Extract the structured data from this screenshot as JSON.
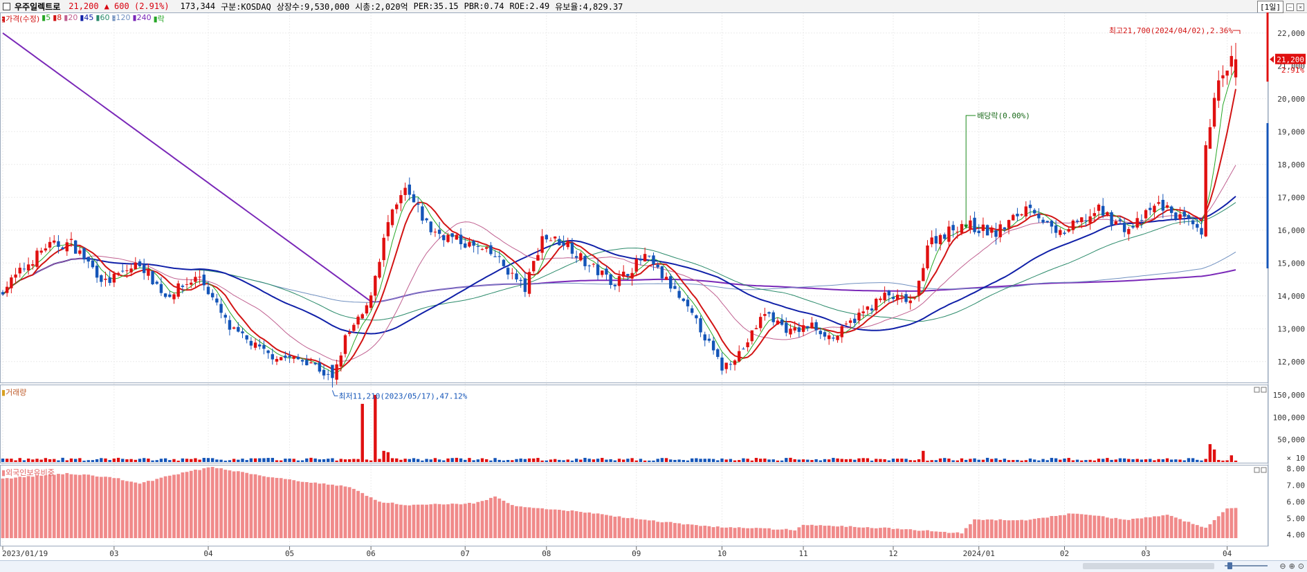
{
  "header": {
    "name": "우주일렉트로",
    "price": "21,200",
    "change": "▲ 600",
    "change_pct": "(2.91%)",
    "volume": "173,344",
    "market": "구분:KOSDAQ",
    "shares": "상장수:9,530,000",
    "mktcap": "시총:2,020억",
    "per": "PER:35.15",
    "pbr": "PBR:0.74",
    "roe": "ROE:2.49",
    "float": "유보율:4,829.37",
    "period": "[1일]"
  },
  "legend": {
    "price": "가격(수정)",
    "ma5": "5",
    "ma8": "8",
    "ma20": "20",
    "ma45": "45",
    "ma60": "60",
    "ma120": "120",
    "ma240": "240",
    "ex": "락"
  },
  "annotations": {
    "high": "최고21,700(2024/04/02),2.36%",
    "low": "최저11,210(2023/05/17),47.12%",
    "dividend": "배당락(0.00%)"
  },
  "price_tag": {
    "price": "21,200",
    "pct": "2.91%"
  },
  "panels": {
    "volume": "거래량",
    "foreign": "외국인보유비중",
    "volume_unit": "× 10"
  },
  "colors": {
    "up": "#e01010",
    "down": "#1455b8",
    "ma5": "#26a626",
    "ma8": "#d21414",
    "ma20": "#c06090",
    "ma45": "#1020a8",
    "ma60": "#2a8a6a",
    "ma120": "#7090c0",
    "ma240": "#7a28b8",
    "foreign": "#f08a8a"
  },
  "chart_data": {
    "type": "candlestick",
    "price_axis": {
      "ylim": [
        11300,
        22500
      ],
      "ticks": [
        12000,
        13000,
        14000,
        15000,
        16000,
        17000,
        18000,
        19000,
        20000,
        21000,
        22000
      ],
      "tick_labels": [
        "12,000",
        "13,000",
        "14,000",
        "15,000",
        "16,000",
        "17,000",
        "18,000",
        "19,000",
        "20,000",
        "21,000",
        "22,000"
      ]
    },
    "volume_axis": {
      "ticks": [
        50000,
        100000,
        150000
      ],
      "tick_labels": [
        "50,000",
        "100,000",
        "150,000"
      ],
      "note": "× 10"
    },
    "foreign_axis": {
      "ticks": [
        4,
        5,
        6,
        7,
        8
      ],
      "tick_labels": [
        "4.00",
        "5.00",
        "6.00",
        "7.00",
        "8.00"
      ]
    },
    "x_labels": [
      {
        "label": "2023/01/19",
        "i": 0
      },
      {
        "label": "03",
        "i": 26
      },
      {
        "label": "04",
        "i": 48
      },
      {
        "label": "05",
        "i": 67
      },
      {
        "label": "06",
        "i": 86
      },
      {
        "label": "07",
        "i": 108
      },
      {
        "label": "08",
        "i": 127
      },
      {
        "label": "09",
        "i": 148
      },
      {
        "label": "10",
        "i": 168
      },
      {
        "label": "11",
        "i": 187
      },
      {
        "label": "12",
        "i": 208
      },
      {
        "label": "2024/01",
        "i": 228
      },
      {
        "label": "02",
        "i": 248
      },
      {
        "label": "03",
        "i": 267
      },
      {
        "label": "04",
        "i": 286
      }
    ],
    "close_anchors": [
      [
        0,
        14200
      ],
      [
        10,
        15500
      ],
      [
        16,
        15600
      ],
      [
        24,
        14400
      ],
      [
        32,
        15000
      ],
      [
        38,
        14000
      ],
      [
        46,
        14600
      ],
      [
        53,
        13000
      ],
      [
        62,
        12200
      ],
      [
        72,
        12000
      ],
      [
        77,
        11400
      ],
      [
        80,
        12700
      ],
      [
        85,
        13600
      ],
      [
        90,
        16200
      ],
      [
        94,
        17200
      ],
      [
        100,
        16000
      ],
      [
        108,
        15600
      ],
      [
        115,
        15200
      ],
      [
        122,
        14200
      ],
      [
        126,
        15800
      ],
      [
        132,
        15600
      ],
      [
        136,
        15000
      ],
      [
        143,
        14400
      ],
      [
        150,
        15200
      ],
      [
        156,
        14300
      ],
      [
        163,
        13000
      ],
      [
        168,
        11800
      ],
      [
        173,
        12400
      ],
      [
        178,
        13500
      ],
      [
        184,
        12900
      ],
      [
        189,
        13100
      ],
      [
        194,
        12700
      ],
      [
        199,
        13300
      ],
      [
        206,
        14000
      ],
      [
        213,
        13800
      ],
      [
        216,
        15600
      ],
      [
        224,
        16200
      ],
      [
        232,
        15900
      ],
      [
        240,
        16800
      ],
      [
        246,
        15800
      ],
      [
        256,
        16600
      ],
      [
        263,
        16000
      ],
      [
        270,
        16800
      ],
      [
        277,
        16200
      ],
      [
        280,
        15800
      ],
      [
        281,
        18400
      ],
      [
        283,
        20200
      ],
      [
        285,
        20600
      ],
      [
        287,
        21200
      ]
    ],
    "vol_spikes": [
      [
        84,
        130000
      ],
      [
        87,
        150000
      ],
      [
        89,
        25000
      ],
      [
        90,
        22000
      ],
      [
        215,
        25000
      ],
      [
        282,
        40000
      ],
      [
        283,
        28000
      ],
      [
        287,
        15000
      ]
    ],
    "foreign_anchors": [
      [
        0,
        7.4
      ],
      [
        15,
        7.7
      ],
      [
        25,
        7.5
      ],
      [
        32,
        7.1
      ],
      [
        41,
        7.7
      ],
      [
        49,
        8.1
      ],
      [
        60,
        7.6
      ],
      [
        71,
        7.2
      ],
      [
        81,
        6.9
      ],
      [
        88,
        6.0
      ],
      [
        95,
        5.8
      ],
      [
        110,
        5.9
      ],
      [
        115,
        6.3
      ],
      [
        120,
        5.7
      ],
      [
        135,
        5.4
      ],
      [
        150,
        4.9
      ],
      [
        165,
        4.5
      ],
      [
        185,
        4.3
      ],
      [
        187,
        4.6
      ],
      [
        207,
        4.4
      ],
      [
        224,
        4.1
      ],
      [
        227,
        4.9
      ],
      [
        240,
        4.9
      ],
      [
        250,
        5.3
      ],
      [
        263,
        4.9
      ],
      [
        272,
        5.2
      ],
      [
        281,
        4.4
      ],
      [
        286,
        5.6
      ],
      [
        288,
        5.6
      ]
    ]
  }
}
